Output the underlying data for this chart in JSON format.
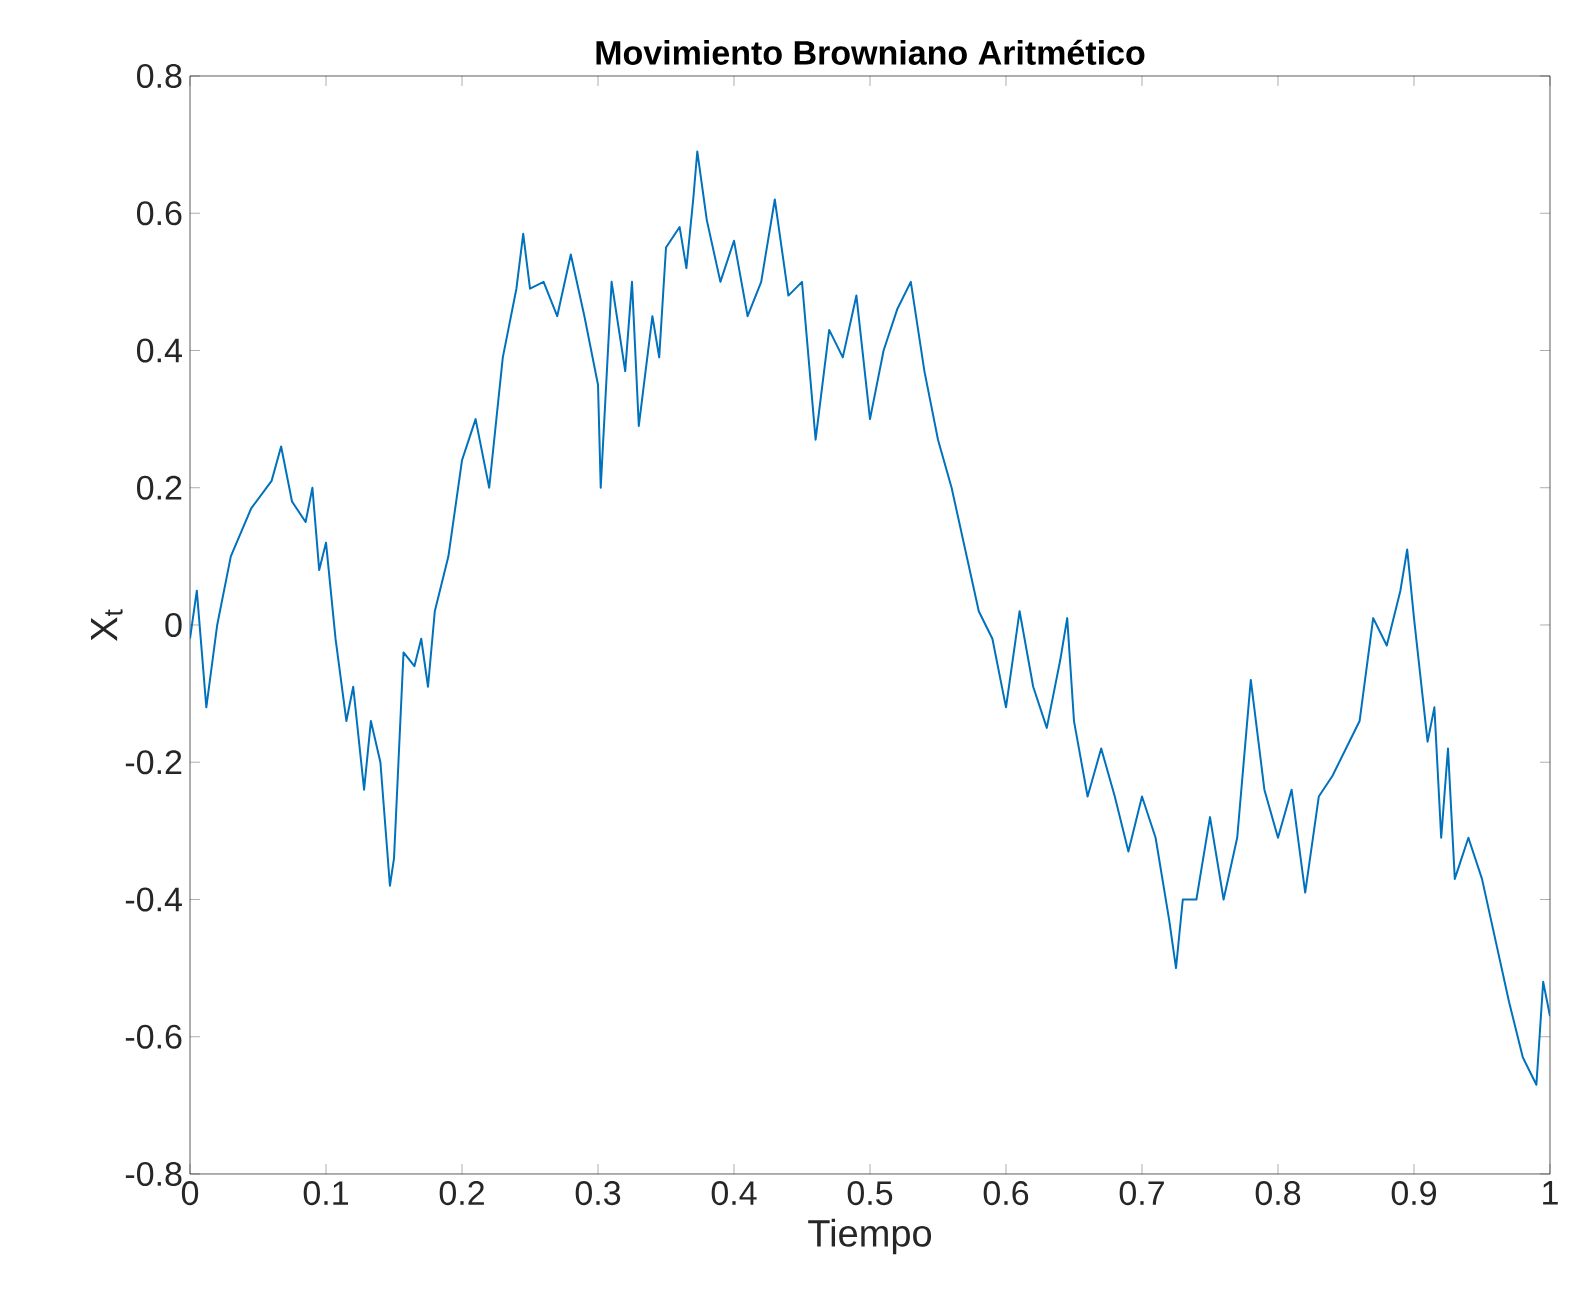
{
  "chart_data": {
    "type": "line",
    "title": "**Movimiento Browniano Aritmético**",
    "xlabel": "Tiempo",
    "ylabel": "X$_{t}$",
    "xlim": [
      0,
      1
    ],
    "ylim": [
      -0.8,
      0.8
    ],
    "xticks": [
      0,
      0.1,
      0.2,
      0.3,
      0.4,
      0.5,
      0.6,
      0.7,
      0.8,
      0.9,
      1
    ],
    "yticks": [
      -0.8,
      -0.6,
      -0.4,
      -0.2,
      0,
      0.2,
      0.4,
      0.6,
      0.8
    ],
    "grid": false,
    "series": [
      {
        "color": "#0072bd",
        "x": [
          0,
          0.005,
          0.012,
          0.02,
          0.03,
          0.045,
          0.06,
          0.067,
          0.075,
          0.085,
          0.09,
          0.095,
          0.1,
          0.107,
          0.115,
          0.12,
          0.128,
          0.133,
          0.14,
          0.147,
          0.15,
          0.157,
          0.165,
          0.17,
          0.175,
          0.18,
          0.19,
          0.2,
          0.21,
          0.22,
          0.23,
          0.24,
          0.245,
          0.25,
          0.26,
          0.27,
          0.28,
          0.29,
          0.3,
          0.302,
          0.31,
          0.32,
          0.325,
          0.33,
          0.34,
          0.345,
          0.35,
          0.36,
          0.365,
          0.37,
          0.373,
          0.38,
          0.39,
          0.4,
          0.41,
          0.42,
          0.43,
          0.44,
          0.45,
          0.46,
          0.47,
          0.48,
          0.49,
          0.5,
          0.51,
          0.52,
          0.53,
          0.54,
          0.55,
          0.56,
          0.57,
          0.58,
          0.59,
          0.6,
          0.61,
          0.62,
          0.63,
          0.64,
          0.645,
          0.65,
          0.66,
          0.67,
          0.68,
          0.69,
          0.7,
          0.71,
          0.72,
          0.725,
          0.73,
          0.74,
          0.75,
          0.76,
          0.77,
          0.78,
          0.79,
          0.8,
          0.81,
          0.82,
          0.83,
          0.84,
          0.85,
          0.86,
          0.87,
          0.88,
          0.89,
          0.895,
          0.9,
          0.91,
          0.915,
          0.92,
          0.925,
          0.93,
          0.94,
          0.95,
          0.96,
          0.97,
          0.98,
          0.99,
          0.995,
          1
        ],
        "values": [
          -0.02,
          0.05,
          -0.12,
          0,
          0.1,
          0.17,
          0.21,
          0.26,
          0.18,
          0.15,
          0.2,
          0.08,
          0.12,
          -0.02,
          -0.14,
          -0.09,
          -0.24,
          -0.14,
          -0.2,
          -0.38,
          -0.34,
          -0.04,
          -0.06,
          -0.02,
          -0.09,
          0.02,
          0.1,
          0.24,
          0.3,
          0.2,
          0.39,
          0.49,
          0.57,
          0.49,
          0.5,
          0.45,
          0.54,
          0.45,
          0.35,
          0.2,
          0.5,
          0.37,
          0.5,
          0.29,
          0.45,
          0.39,
          0.55,
          0.58,
          0.52,
          0.62,
          0.69,
          0.59,
          0.5,
          0.56,
          0.45,
          0.5,
          0.62,
          0.48,
          0.5,
          0.27,
          0.43,
          0.39,
          0.48,
          0.3,
          0.4,
          0.46,
          0.5,
          0.37,
          0.27,
          0.2,
          0.11,
          0.02,
          -0.02,
          -0.12,
          0.02,
          -0.09,
          -0.15,
          -0.05,
          0.01,
          -0.14,
          -0.25,
          -0.18,
          -0.25,
          -0.33,
          -0.25,
          -0.31,
          -0.43,
          -0.5,
          -0.4,
          -0.4,
          -0.28,
          -0.4,
          -0.31,
          -0.08,
          -0.24,
          -0.31,
          -0.24,
          -0.39,
          -0.25,
          -0.22,
          -0.18,
          -0.14,
          0.01,
          -0.03,
          0.05,
          0.11,
          0.01,
          -0.17,
          -0.12,
          -0.31,
          -0.18,
          -0.37,
          -0.31,
          -0.37,
          -0.46,
          -0.55,
          -0.63,
          -0.67,
          -0.52,
          -0.57
        ]
      }
    ]
  }
}
